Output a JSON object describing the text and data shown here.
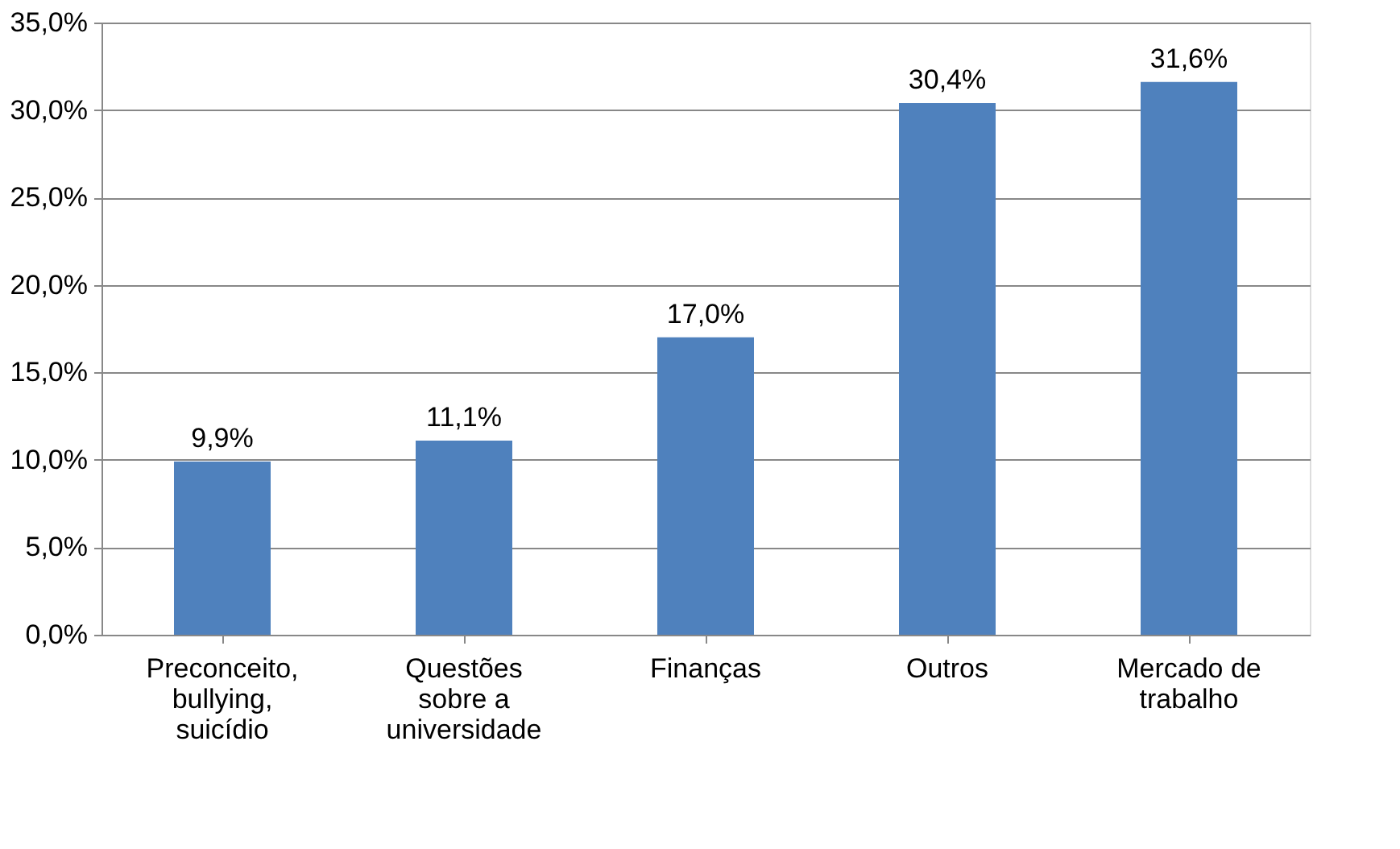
{
  "chart_data": {
    "type": "bar",
    "categories": [
      "Preconceito, bullying, suicídio",
      "Questões sobre a universidade",
      "Finanças",
      "Outros",
      "Mercado de trabalho"
    ],
    "values": [
      9.9,
      11.1,
      17.0,
      30.4,
      31.6
    ],
    "value_labels": [
      "9,9%",
      "11,1%",
      "17,0%",
      "30,4%",
      "31,6%"
    ],
    "color": "#4f81bd",
    "ylim": [
      0,
      35
    ],
    "yticks": [
      {
        "value": 0,
        "label": "0,0%"
      },
      {
        "value": 5,
        "label": "5,0%"
      },
      {
        "value": 10,
        "label": "10,0%"
      },
      {
        "value": 15,
        "label": "15,0%"
      },
      {
        "value": 20,
        "label": "20,0%"
      },
      {
        "value": 25,
        "label": "25,0%"
      },
      {
        "value": 30,
        "label": "30,0%"
      },
      {
        "value": 35,
        "label": "35,0%"
      }
    ],
    "grid": "y"
  }
}
